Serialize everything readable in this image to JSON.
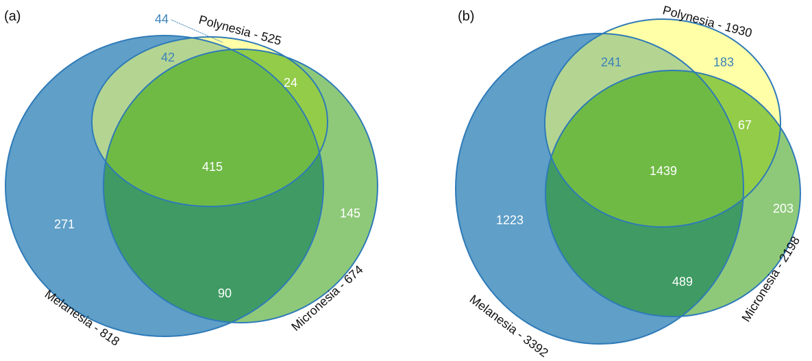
{
  "colors": {
    "melanesia": "#5f9fc8",
    "polynesia": "#ffffa8",
    "micronesia": "#8ec97a",
    "overlap": "#6fba45",
    "mel_mic": "#3f9b63",
    "pol_mic": "#93cc48",
    "mel_pol": "#b4d492",
    "stroke": "#2e7ab8",
    "num_light": "#ffffff",
    "num_dark": "#3a82b8"
  },
  "panel_a": {
    "tag": "(a)",
    "sets": {
      "melanesia": "Melanesia - 818",
      "polynesia": "Polynesia - 525",
      "micronesia": "Micronesia - 674"
    },
    "regions": {
      "mel_only": "271",
      "pol_only": "44",
      "mic_only": "145",
      "mel_pol": "42",
      "pol_mic": "24",
      "mel_mic": "90",
      "all": "415"
    }
  },
  "panel_b": {
    "tag": "(b)",
    "sets": {
      "melanesia": "Melanesia - 3392",
      "polynesia": "Polynesia - 1930",
      "micronesia": "Micronesia - 2198"
    },
    "regions": {
      "mel_only": "1223",
      "pol_only": "183",
      "mic_only": "203",
      "mel_pol": "241",
      "pol_mic": "67",
      "mel_mic": "489",
      "all": "1439"
    }
  }
}
